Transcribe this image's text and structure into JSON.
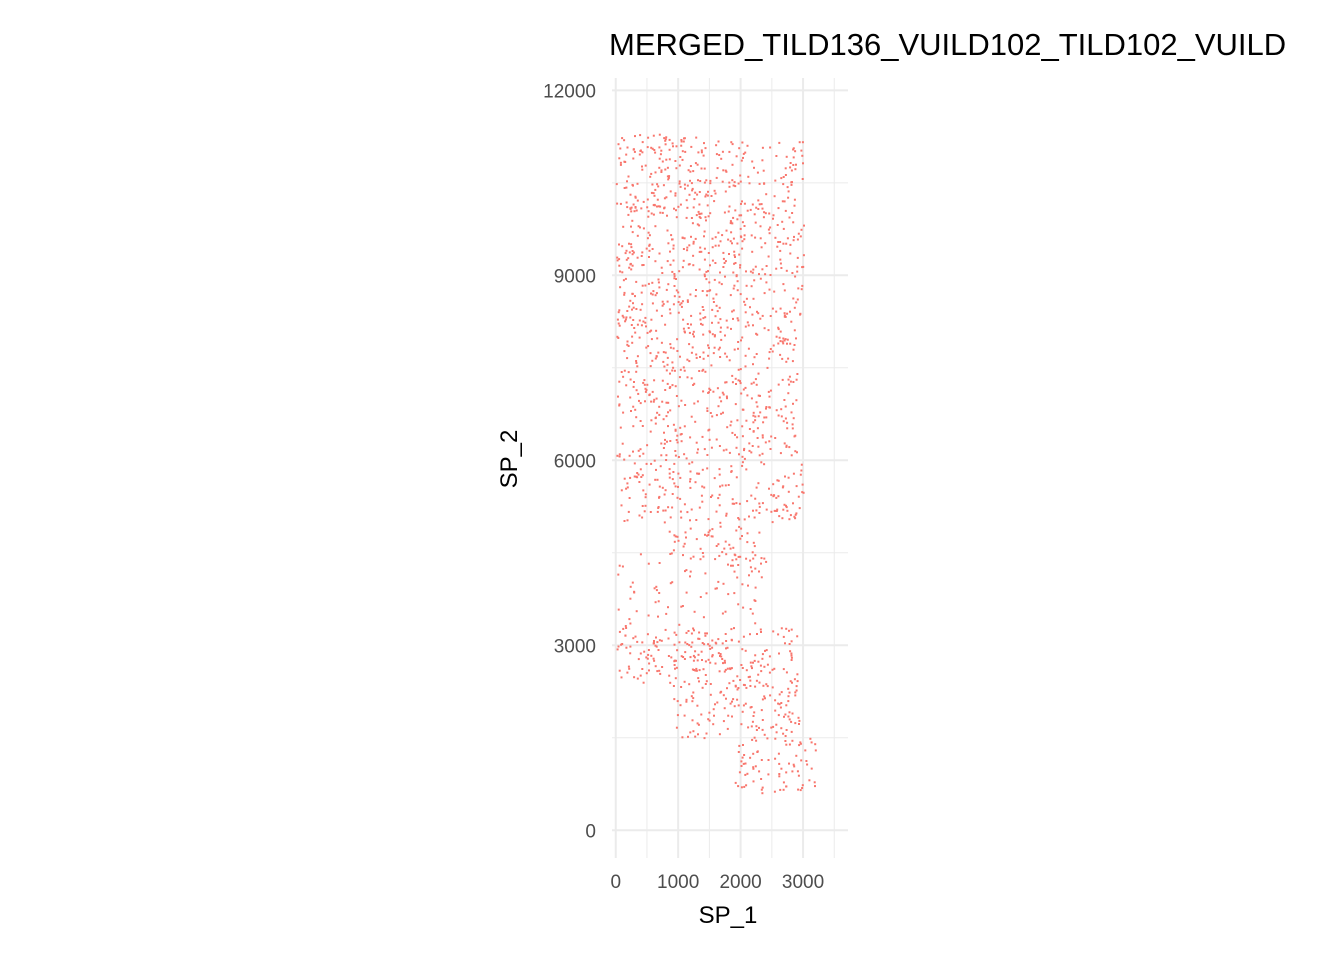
{
  "chart_data": {
    "type": "scatter",
    "title": "MERGED_TILD136_VUILD102_TILD102_VUILD",
    "xlabel": "SP_1",
    "ylabel": "SP_2",
    "xlim": [
      -60,
      3720
    ],
    "ylim": [
      -450,
      12200
    ],
    "x_ticks": [
      0,
      1000,
      2000,
      3000
    ],
    "y_ticks": [
      0,
      3000,
      6000,
      9000,
      12000
    ],
    "grid": true,
    "legend": "none",
    "point_color": "#F8766D",
    "description_series": "spatial spot coordinates",
    "regions": [
      {
        "x0": 0,
        "x1": 1300,
        "y0": 10000,
        "y1": 11300,
        "density": 0.85
      },
      {
        "x0": 1300,
        "x1": 3000,
        "y0": 10000,
        "y1": 11200,
        "density": 0.6
      },
      {
        "x0": 0,
        "x1": 3000,
        "y0": 8300,
        "y1": 10000,
        "density": 0.65
      },
      {
        "x0": 0,
        "x1": 2900,
        "y0": 6000,
        "y1": 8300,
        "density": 0.6
      },
      {
        "x0": 0,
        "x1": 3000,
        "y0": 5000,
        "y1": 6000,
        "density": 0.55
      },
      {
        "x0": 800,
        "x1": 2300,
        "y0": 4300,
        "y1": 5000,
        "density": 0.5
      },
      {
        "x0": 0,
        "x1": 2400,
        "y0": 3300,
        "y1": 4500,
        "density": 0.25
      },
      {
        "x0": 0,
        "x1": 2900,
        "y0": 2400,
        "y1": 3300,
        "density": 0.75
      },
      {
        "x0": 900,
        "x1": 2950,
        "y0": 1500,
        "y1": 2400,
        "density": 0.65
      },
      {
        "x0": 1900,
        "x1": 3200,
        "y0": 600,
        "y1": 1500,
        "density": 0.6
      }
    ]
  }
}
